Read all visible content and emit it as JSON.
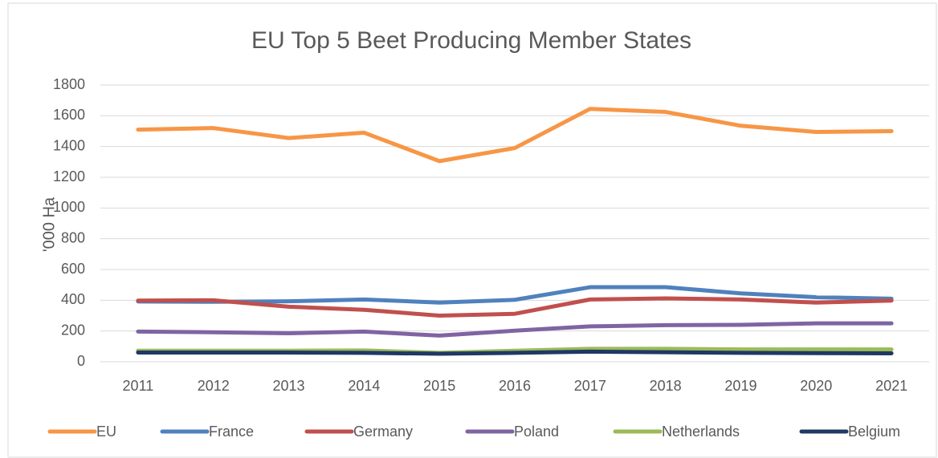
{
  "chart_data": {
    "type": "line",
    "title": "EU Top 5 Beet Producing Member States",
    "y_label": "'000 Ha",
    "categories": [
      "2011",
      "2012",
      "2013",
      "2014",
      "2015",
      "2016",
      "2017",
      "2018",
      "2019",
      "2020",
      "2021"
    ],
    "series": [
      {
        "name": "EU",
        "color": "#f79646",
        "values": [
          1510,
          1520,
          1455,
          1490,
          1305,
          1390,
          1645,
          1625,
          1535,
          1495,
          1500
        ]
      },
      {
        "name": "France",
        "color": "#4f81bd",
        "values": [
          392,
          390,
          393,
          405,
          385,
          403,
          485,
          485,
          445,
          420,
          410
        ]
      },
      {
        "name": "Germany",
        "color": "#c0504d",
        "values": [
          398,
          400,
          358,
          338,
          300,
          312,
          405,
          412,
          405,
          385,
          398
        ]
      },
      {
        "name": "Poland",
        "color": "#8064a2",
        "values": [
          196,
          192,
          185,
          196,
          170,
          202,
          230,
          238,
          240,
          250,
          250
        ]
      },
      {
        "name": "Netherlands",
        "color": "#9bbb59",
        "values": [
          72,
          72,
          72,
          74,
          58,
          72,
          84,
          84,
          80,
          80,
          80
        ]
      },
      {
        "name": "Belgium",
        "color": "#1f3864",
        "values": [
          60,
          60,
          60,
          58,
          52,
          58,
          66,
          62,
          58,
          56,
          55
        ]
      }
    ],
    "ylim": [
      0,
      1800
    ],
    "yticks": [
      0,
      200,
      400,
      600,
      800,
      1000,
      1200,
      1400,
      1600,
      1800
    ],
    "grid": true,
    "legend": "bottom"
  }
}
